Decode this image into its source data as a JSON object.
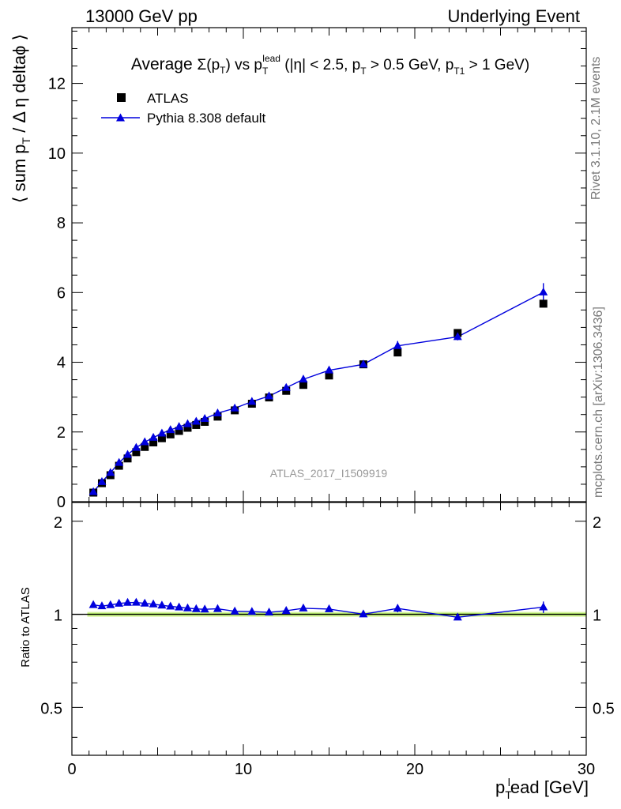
{
  "header": {
    "left": "13000 GeV pp",
    "right": "Underlying Event"
  },
  "side_labels": {
    "rivet": "Rivet 3.1.10,  2.1M events",
    "mcplots": "mcplots.cern.ch [arXiv:1306.3436]"
  },
  "chart_data": [
    {
      "type": "scatter",
      "panel": "main",
      "title": "Average Σ(pT) vs pT^lead (|η| < 2.5, pT > 0.5 GeV, pT1 > 1 GeV)",
      "ylabel": "⟨ sum pT / Δη deltaϕ ⟩",
      "xlabel": "pT^lead [GeV]",
      "xlim": [
        0,
        30
      ],
      "ylim": [
        0,
        13.6
      ],
      "yticks": [
        0,
        2,
        4,
        6,
        8,
        10,
        12
      ],
      "ytick_labels": [
        "0",
        "2",
        "4",
        "6",
        "8",
        "10",
        "12"
      ],
      "watermark": "ATLAS_2017_I1509919",
      "legend": {
        "position": "top-left",
        "entries": [
          "ATLAS",
          "Pythia 8.308 default"
        ]
      },
      "x": [
        1.25,
        1.75,
        2.25,
        2.75,
        3.25,
        3.75,
        4.25,
        4.75,
        5.25,
        5.75,
        6.25,
        6.75,
        7.25,
        7.75,
        8.5,
        9.5,
        10.5,
        11.5,
        12.5,
        13.5,
        15.0,
        17.0,
        19.0,
        22.5,
        27.5
      ],
      "series": [
        {
          "name": "ATLAS",
          "marker": "square",
          "color": "#000000",
          "values": [
            0.26,
            0.53,
            0.76,
            1.03,
            1.24,
            1.42,
            1.57,
            1.7,
            1.82,
            1.93,
            2.03,
            2.12,
            2.2,
            2.29,
            2.44,
            2.62,
            2.81,
            2.99,
            3.18,
            3.35,
            3.62,
            3.94,
            4.28,
            4.84,
            5.68
          ]
        },
        {
          "name": "Pythia 8.308 default",
          "marker": "triangle",
          "color": "#0000dd",
          "values": [
            0.28,
            0.57,
            0.83,
            1.12,
            1.35,
            1.55,
            1.71,
            1.84,
            1.96,
            2.06,
            2.15,
            2.23,
            2.3,
            2.38,
            2.54,
            2.68,
            2.87,
            3.03,
            3.27,
            3.51,
            3.77,
            3.94,
            4.47,
            4.73,
            6.01
          ],
          "errors": [
            0.02,
            0.02,
            0.02,
            0.02,
            0.02,
            0.02,
            0.02,
            0.02,
            0.02,
            0.02,
            0.02,
            0.02,
            0.02,
            0.02,
            0.03,
            0.03,
            0.04,
            0.05,
            0.05,
            0.06,
            0.06,
            0.08,
            0.14,
            0.1,
            0.26
          ]
        }
      ]
    },
    {
      "type": "line",
      "panel": "ratio",
      "ylabel": "Ratio to ATLAS",
      "xlabel": "pT^lead [GeV]",
      "xlim": [
        0,
        30
      ],
      "ylim": [
        0.35,
        2.3
      ],
      "yticks": [
        0.5,
        1,
        2
      ],
      "ytick_labels": [
        "0.5",
        "1",
        "2"
      ],
      "xticks": [
        0,
        10,
        20,
        30
      ],
      "xtick_labels": [
        "0",
        "10",
        "20",
        "30"
      ],
      "x": [
        1.25,
        1.75,
        2.25,
        2.75,
        3.25,
        3.75,
        4.25,
        4.75,
        5.25,
        5.75,
        6.25,
        6.75,
        7.25,
        7.75,
        8.5,
        9.5,
        10.5,
        11.5,
        12.5,
        13.5,
        15.0,
        17.0,
        19.0,
        22.5,
        27.5
      ],
      "series": [
        {
          "name": "Pythia 8.308 default",
          "color": "#0000dd",
          "values": [
            1.073,
            1.063,
            1.072,
            1.084,
            1.091,
            1.092,
            1.085,
            1.078,
            1.069,
            1.061,
            1.054,
            1.047,
            1.041,
            1.038,
            1.042,
            1.023,
            1.02,
            1.015,
            1.027,
            1.046,
            1.04,
            1.001,
            1.045,
            0.978,
            1.055
          ],
          "errors": [
            0.01,
            0.01,
            0.01,
            0.01,
            0.01,
            0.01,
            0.01,
            0.01,
            0.01,
            0.01,
            0.01,
            0.01,
            0.01,
            0.01,
            0.01,
            0.01,
            0.01,
            0.01,
            0.015,
            0.015,
            0.015,
            0.015,
            0.03,
            0.02,
            0.045
          ]
        }
      ]
    }
  ]
}
